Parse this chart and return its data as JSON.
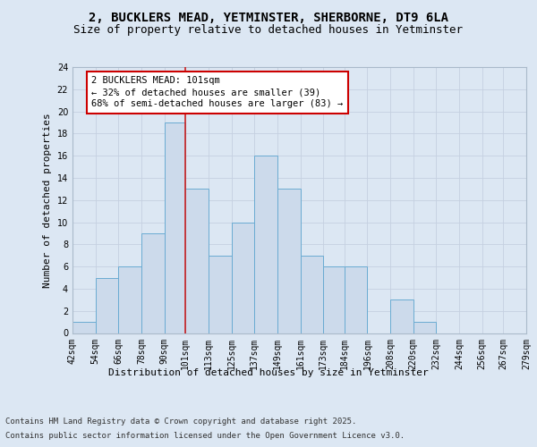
{
  "title_line1": "2, BUCKLERS MEAD, YETMINSTER, SHERBORNE, DT9 6LA",
  "title_line2": "Size of property relative to detached houses in Yetminster",
  "xlabel": "Distribution of detached houses by size in Yetminster",
  "ylabel": "Number of detached properties",
  "bin_labels": [
    "42sqm",
    "54sqm",
    "66sqm",
    "78sqm",
    "90sqm",
    "101sqm",
    "113sqm",
    "125sqm",
    "137sqm",
    "149sqm",
    "161sqm",
    "173sqm",
    "184sqm",
    "196sqm",
    "208sqm",
    "220sqm",
    "232sqm",
    "244sqm",
    "256sqm",
    "267sqm",
    "279sqm"
  ],
  "bin_edges": [
    42,
    54,
    66,
    78,
    90,
    101,
    113,
    125,
    137,
    149,
    161,
    173,
    184,
    196,
    208,
    220,
    232,
    244,
    256,
    267,
    279
  ],
  "bar_heights": [
    1,
    5,
    6,
    9,
    19,
    13,
    7,
    10,
    16,
    13,
    7,
    6,
    6,
    0,
    3,
    1,
    0,
    0,
    0,
    0
  ],
  "bar_color": "#ccdaeb",
  "bar_edge_color": "#6aabd2",
  "subject_value": 101,
  "annotation_line1": "2 BUCKLERS MEAD: 101sqm",
  "annotation_line2": "← 32% of detached houses are smaller (39)",
  "annotation_line3": "68% of semi-detached houses are larger (83) →",
  "annotation_box_color": "#ffffff",
  "annotation_box_edge_color": "#cc0000",
  "vline_color": "#cc2222",
  "ylim": [
    0,
    24
  ],
  "yticks": [
    0,
    2,
    4,
    6,
    8,
    10,
    12,
    14,
    16,
    18,
    20,
    22,
    24
  ],
  "grid_color": "#c5d0e0",
  "bg_color": "#dce7f3",
  "plot_bg_color": "#dce7f3",
  "footer_line1": "Contains HM Land Registry data © Crown copyright and database right 2025.",
  "footer_line2": "Contains public sector information licensed under the Open Government Licence v3.0.",
  "title_fontsize": 10,
  "subtitle_fontsize": 9,
  "axis_label_fontsize": 8,
  "tick_fontsize": 7,
  "annotation_fontsize": 7.5,
  "footer_fontsize": 6.5
}
